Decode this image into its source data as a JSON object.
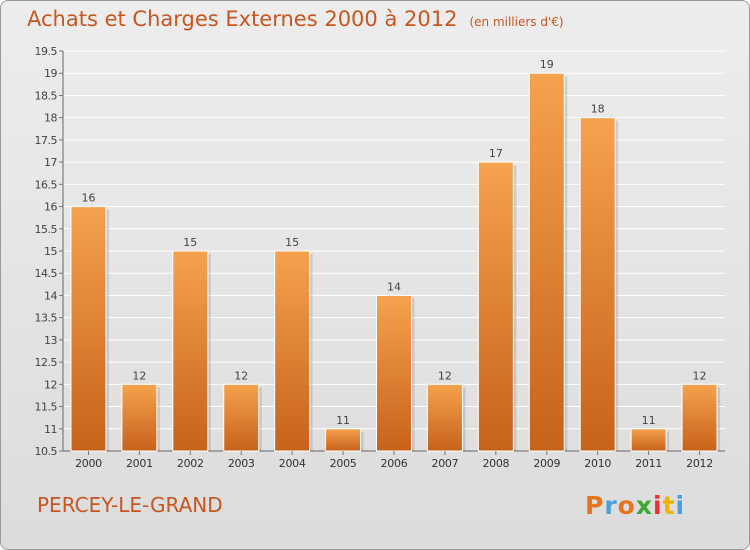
{
  "header": {
    "title": "Achats et Charges Externes 2000 à 2012",
    "unit": "(en milliers d'€)"
  },
  "footer": {
    "place": "PERCEY-LE-GRAND",
    "logo_text": "Proxiti"
  },
  "colors": {
    "bar_top": "#f5a24e",
    "bar_bottom": "#c7621a",
    "title": "#c8561f"
  },
  "chart_data": {
    "type": "bar",
    "title": "Achats et Charges Externes 2000 à 2012",
    "categories": [
      "2000",
      "2001",
      "2002",
      "2003",
      "2004",
      "2005",
      "2006",
      "2007",
      "2008",
      "2009",
      "2010",
      "2011",
      "2012"
    ],
    "values": [
      16,
      12,
      15,
      12,
      15,
      11,
      14,
      12,
      17,
      19,
      18,
      11,
      12
    ],
    "ylim": [
      10.5,
      19.5
    ],
    "yticks": [
      "10.5",
      "11",
      "11.5",
      "12",
      "12.5",
      "13",
      "13.5",
      "14",
      "14.5",
      "15",
      "15.5",
      "16",
      "16.5",
      "17",
      "17.5",
      "18",
      "18.5",
      "19",
      "19.5"
    ],
    "grid": true
  }
}
